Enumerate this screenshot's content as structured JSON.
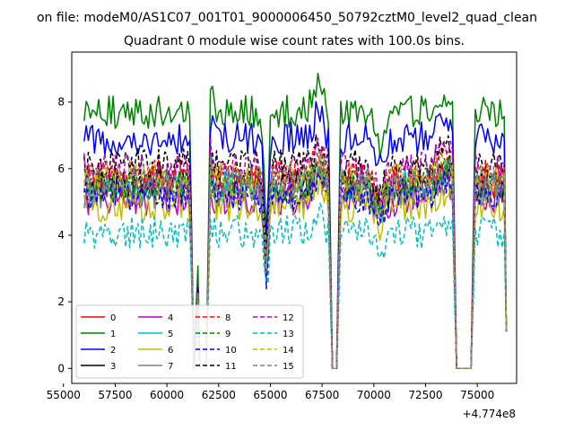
{
  "suptitle": "on file: modeM0/AS1C07_001T01_9000006450_50792cztM0_level2_quad_clean",
  "chart_data": {
    "type": "line",
    "title": "Quadrant 0 module wise count rates with 100.0s bins.",
    "xlabel": "",
    "ylabel": "",
    "x_offset_label": "+4.774e8",
    "xlim": [
      55400,
      76900
    ],
    "ylim": [
      -0.45,
      9.5
    ],
    "xticks": [
      55000,
      57500,
      60000,
      62500,
      65000,
      67500,
      70000,
      72500,
      75000
    ],
    "xtick_labels": [
      "55000",
      "57500",
      "60000",
      "62500",
      "65000",
      "67500",
      "70000",
      "72500",
      "75000"
    ],
    "yticks": [
      0,
      2,
      4,
      6,
      8
    ],
    "ytick_labels": [
      "0",
      "2",
      "4",
      "6",
      "8"
    ],
    "grid": false,
    "legend_position": "lower-left",
    "legend_columns": 4,
    "x_start": 56000,
    "x_end": 76400,
    "bin": 100,
    "gaps": [
      [
        61500,
        62000
      ],
      [
        67900,
        68300
      ],
      [
        73900,
        74800
      ]
    ],
    "series": [
      {
        "name": "0",
        "color": "#ff0000",
        "style": "solid",
        "base": 5.6
      },
      {
        "name": "1",
        "color": "#008000",
        "style": "solid",
        "base": 7.7
      },
      {
        "name": "2",
        "color": "#0000ff",
        "style": "solid",
        "base": 6.9
      },
      {
        "name": "3",
        "color": "#000000",
        "style": "solid",
        "base": 5.5
      },
      {
        "name": "4",
        "color": "#bf00bf",
        "style": "solid",
        "base": 5.1
      },
      {
        "name": "5",
        "color": "#00bfbf",
        "style": "solid",
        "base": 5.5
      },
      {
        "name": "6",
        "color": "#bfbf00",
        "style": "solid",
        "base": 4.9
      },
      {
        "name": "7",
        "color": "#808080",
        "style": "solid",
        "base": 5.3
      },
      {
        "name": "8",
        "color": "#ff0000",
        "style": "dashed",
        "base": 5.8
      },
      {
        "name": "9",
        "color": "#008000",
        "style": "dashed",
        "base": 5.5
      },
      {
        "name": "10",
        "color": "#0000ff",
        "style": "dashed",
        "base": 5.2
      },
      {
        "name": "11",
        "color": "#000000",
        "style": "dashed",
        "base": 6.1
      },
      {
        "name": "12",
        "color": "#bf00bf",
        "style": "dashed",
        "base": 6.0
      },
      {
        "name": "13",
        "color": "#00bfbf",
        "style": "dashed",
        "base": 4.1
      },
      {
        "name": "14",
        "color": "#bfbf00",
        "style": "dashed",
        "base": 5.7
      },
      {
        "name": "15",
        "color": "#808080",
        "style": "dashed",
        "base": 5.6
      }
    ]
  }
}
